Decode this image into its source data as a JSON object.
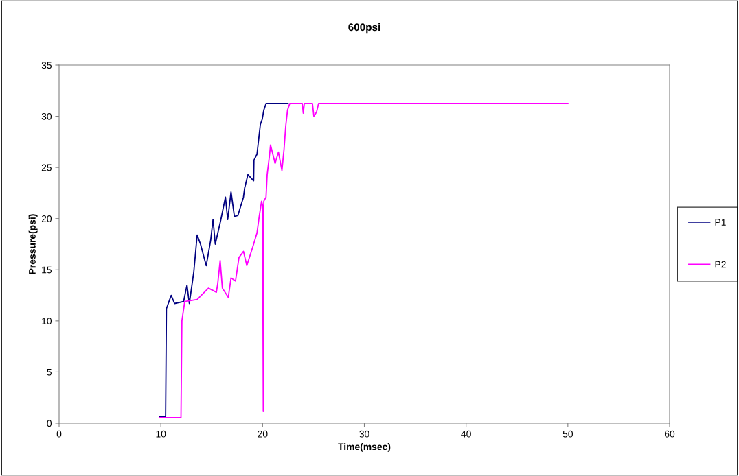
{
  "chart_data": {
    "type": "line",
    "title": "600psi",
    "xlabel": "Time(msec)",
    "ylabel": "Pressure(psi)",
    "xlim": [
      0,
      60
    ],
    "xticks": [
      0,
      10,
      20,
      30,
      40,
      50,
      60
    ],
    "ylim": [
      0,
      35
    ],
    "yticks": [
      0,
      5,
      10,
      15,
      20,
      25,
      30,
      35
    ],
    "grid": false,
    "legend": "right",
    "marker": "none",
    "line_style": "solid",
    "series": [
      {
        "name": "P1",
        "color": "#000080",
        "x": [
          9.9,
          10.47,
          10.55,
          11.02,
          11.35,
          12.24,
          12.57,
          12.8,
          13.24,
          13.57,
          13.9,
          14.46,
          14.9,
          15.13,
          15.35,
          15.9,
          16.35,
          16.57,
          16.9,
          17.23,
          17.57,
          18.12,
          18.24,
          18.56,
          19.12,
          19.15,
          19.45,
          19.78,
          19.96,
          20.12,
          20.34,
          22.5
        ],
        "values": [
          0.67,
          0.67,
          11.2,
          12.5,
          11.7,
          11.9,
          13.5,
          11.7,
          14.8,
          18.4,
          17.5,
          15.4,
          17.9,
          19.9,
          17.5,
          19.9,
          22.1,
          19.9,
          22.6,
          20.2,
          20.3,
          22.1,
          23.0,
          24.3,
          23.7,
          25.7,
          26.3,
          29.2,
          29.7,
          30.6,
          31.25,
          31.25
        ]
      },
      {
        "name": "P2",
        "color": "#ff00ff",
        "x": [
          9.9,
          11.98,
          12.07,
          12.35,
          13.57,
          14.68,
          15.46,
          15.6,
          15.83,
          16.05,
          16.63,
          16.9,
          17.34,
          17.68,
          18.12,
          18.45,
          19.12,
          19.45,
          19.67,
          19.9,
          20.0,
          20.07,
          20.12,
          20.34,
          20.45,
          20.67,
          20.78,
          21.23,
          21.56,
          21.9,
          22.11,
          22.27,
          22.45,
          22.67,
          23.9,
          24.0,
          24.1,
          24.9,
          25.04,
          25.3,
          25.5,
          50
        ],
        "values": [
          0.55,
          0.55,
          10.0,
          11.9,
          12.1,
          13.2,
          12.8,
          13.7,
          15.9,
          13.2,
          12.3,
          14.2,
          13.9,
          16.2,
          16.8,
          15.4,
          17.5,
          18.6,
          20.2,
          21.7,
          21.3,
          1.2,
          21.7,
          22.1,
          24.3,
          26.1,
          27.2,
          25.4,
          26.5,
          24.7,
          26.8,
          29.0,
          30.6,
          31.25,
          31.25,
          30.3,
          31.25,
          31.25,
          30.0,
          30.4,
          31.25,
          31.25
        ]
      }
    ]
  }
}
